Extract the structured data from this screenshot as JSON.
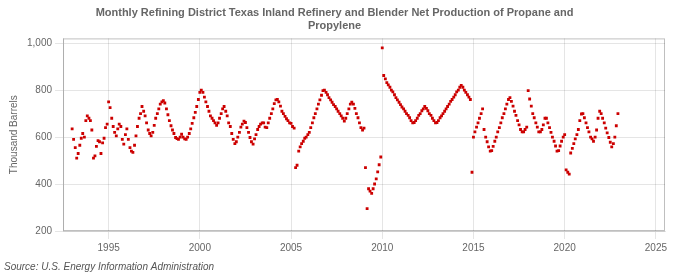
{
  "chart_data": {
    "type": "scatter",
    "title": "Monthly Refining District Texas Inland Refinery and Blender Net Production of Propane and\nPropylene",
    "ylabel": "Thousand Barrels",
    "source": "Source: U.S. Energy Information Administration",
    "color": "#cc0000",
    "marker": "square",
    "grid": true,
    "xlim": [
      1992.5,
      2025.5
    ],
    "ylim": [
      200,
      1020
    ],
    "xticks": [
      1995,
      2000,
      2005,
      2010,
      2015,
      2020,
      2025
    ],
    "yticks": [
      200,
      400,
      600,
      800,
      {
        "value": 1000,
        "label": "1,000"
      }
    ],
    "x": [
      1993.0,
      1993.08,
      1993.17,
      1993.25,
      1993.33,
      1993.42,
      1993.5,
      1993.58,
      1993.67,
      1993.75,
      1993.83,
      1993.92,
      1994.0,
      1994.08,
      1994.17,
      1994.25,
      1994.33,
      1994.42,
      1994.5,
      1994.58,
      1994.67,
      1994.75,
      1994.83,
      1994.92,
      1995.0,
      1995.08,
      1995.17,
      1995.25,
      1995.33,
      1995.42,
      1995.5,
      1995.58,
      1995.67,
      1995.75,
      1995.83,
      1995.92,
      1996.0,
      1996.08,
      1996.17,
      1996.25,
      1996.33,
      1996.42,
      1996.5,
      1996.58,
      1996.67,
      1996.75,
      1996.83,
      1996.92,
      1997.0,
      1997.08,
      1997.17,
      1997.25,
      1997.33,
      1997.42,
      1997.5,
      1997.58,
      1997.67,
      1997.75,
      1997.83,
      1997.92,
      1998.0,
      1998.08,
      1998.17,
      1998.25,
      1998.33,
      1998.42,
      1998.5,
      1998.58,
      1998.67,
      1998.75,
      1998.83,
      1998.92,
      1999.0,
      1999.08,
      1999.17,
      1999.25,
      1999.33,
      1999.42,
      1999.5,
      1999.58,
      1999.67,
      1999.75,
      1999.83,
      1999.92,
      2000.0,
      2000.08,
      2000.17,
      2000.25,
      2000.33,
      2000.42,
      2000.5,
      2000.58,
      2000.67,
      2000.75,
      2000.83,
      2000.92,
      2001.0,
      2001.08,
      2001.17,
      2001.25,
      2001.33,
      2001.42,
      2001.5,
      2001.58,
      2001.67,
      2001.75,
      2001.83,
      2001.92,
      2002.0,
      2002.08,
      2002.17,
      2002.25,
      2002.33,
      2002.42,
      2002.5,
      2002.58,
      2002.67,
      2002.75,
      2002.83,
      2002.92,
      2003.0,
      2003.08,
      2003.17,
      2003.25,
      2003.33,
      2003.42,
      2003.5,
      2003.58,
      2003.67,
      2003.75,
      2003.83,
      2003.92,
      2004.0,
      2004.08,
      2004.17,
      2004.25,
      2004.33,
      2004.42,
      2004.5,
      2004.58,
      2004.67,
      2004.75,
      2004.83,
      2004.92,
      2005.0,
      2005.08,
      2005.17,
      2005.25,
      2005.33,
      2005.42,
      2005.5,
      2005.58,
      2005.67,
      2005.75,
      2005.83,
      2005.92,
      2006.0,
      2006.08,
      2006.17,
      2006.25,
      2006.33,
      2006.42,
      2006.5,
      2006.58,
      2006.67,
      2006.75,
      2006.83,
      2006.92,
      2007.0,
      2007.08,
      2007.17,
      2007.25,
      2007.33,
      2007.42,
      2007.5,
      2007.58,
      2007.67,
      2007.75,
      2007.83,
      2007.92,
      2008.0,
      2008.08,
      2008.17,
      2008.25,
      2008.33,
      2008.42,
      2008.5,
      2008.58,
      2008.67,
      2008.75,
      2008.83,
      2008.92,
      2009.0,
      2009.08,
      2009.17,
      2009.25,
      2009.33,
      2009.42,
      2009.5,
      2009.58,
      2009.67,
      2009.75,
      2009.83,
      2009.92,
      2010.0,
      2010.08,
      2010.17,
      2010.25,
      2010.33,
      2010.42,
      2010.5,
      2010.58,
      2010.67,
      2010.75,
      2010.83,
      2010.92,
      2011.0,
      2011.08,
      2011.17,
      2011.25,
      2011.33,
      2011.42,
      2011.5,
      2011.58,
      2011.67,
      2011.75,
      2011.83,
      2011.92,
      2012.0,
      2012.08,
      2012.17,
      2012.25,
      2012.33,
      2012.42,
      2012.5,
      2012.58,
      2012.67,
      2012.75,
      2012.83,
      2012.92,
      2013.0,
      2013.08,
      2013.17,
      2013.25,
      2013.33,
      2013.42,
      2013.5,
      2013.58,
      2013.67,
      2013.75,
      2013.83,
      2013.92,
      2014.0,
      2014.08,
      2014.17,
      2014.25,
      2014.33,
      2014.42,
      2014.5,
      2014.58,
      2014.67,
      2014.75,
      2014.83,
      2014.92,
      2015.0,
      2015.08,
      2015.17,
      2015.25,
      2015.33,
      2015.42,
      2015.5,
      2015.58,
      2015.67,
      2015.75,
      2015.83,
      2015.92,
      2016.0,
      2016.08,
      2016.17,
      2016.25,
      2016.33,
      2016.42,
      2016.5,
      2016.58,
      2016.67,
      2016.75,
      2016.83,
      2016.92,
      2017.0,
      2017.08,
      2017.17,
      2017.25,
      2017.33,
      2017.42,
      2017.5,
      2017.58,
      2017.67,
      2017.75,
      2017.83,
      2017.92,
      2018.0,
      2018.08,
      2018.17,
      2018.25,
      2018.33,
      2018.42,
      2018.5,
      2018.58,
      2018.67,
      2018.75,
      2018.83,
      2018.92,
      2019.0,
      2019.08,
      2019.17,
      2019.25,
      2019.33,
      2019.42,
      2019.5,
      2019.58,
      2019.67,
      2019.75,
      2019.83,
      2019.92,
      2020.0,
      2020.08,
      2020.17,
      2020.25,
      2020.33,
      2020.42,
      2020.5,
      2020.58,
      2020.67,
      2020.75,
      2020.83,
      2020.92,
      2021.0,
      2021.08,
      2021.17,
      2021.25,
      2021.33,
      2021.42,
      2021.5,
      2021.58,
      2021.67,
      2021.75,
      2021.83,
      2021.92,
      2022.0,
      2022.08,
      2022.17,
      2022.25,
      2022.33,
      2022.42,
      2022.5,
      2022.58,
      2022.67,
      2022.75,
      2022.83,
      2022.92
    ],
    "values": [
      635,
      590,
      555,
      510,
      530,
      565,
      595,
      615,
      600,
      670,
      690,
      680,
      670,
      630,
      510,
      520,
      560,
      585,
      580,
      530,
      575,
      595,
      640,
      655,
      750,
      725,
      680,
      645,
      620,
      605,
      635,
      655,
      645,
      590,
      570,
      610,
      635,
      590,
      555,
      540,
      535,
      565,
      605,
      645,
      680,
      700,
      730,
      710,
      690,
      660,
      630,
      615,
      605,
      620,
      650,
      680,
      700,
      720,
      740,
      750,
      755,
      745,
      720,
      695,
      670,
      648,
      630,
      615,
      598,
      593,
      590,
      600,
      612,
      600,
      592,
      590,
      600,
      615,
      635,
      658,
      682,
      705,
      730,
      760,
      790,
      800,
      790,
      770,
      750,
      730,
      710,
      690,
      680,
      670,
      660,
      650,
      660,
      680,
      700,
      720,
      730,
      710,
      690,
      660,
      645,
      615,
      590,
      572,
      580,
      600,
      620,
      642,
      655,
      668,
      662,
      640,
      620,
      598,
      580,
      570,
      592,
      610,
      632,
      645,
      655,
      660,
      660,
      642,
      640,
      660,
      680,
      700,
      720,
      742,
      758,
      760,
      750,
      732,
      710,
      700,
      688,
      678,
      670,
      660,
      658,
      645,
      638,
      470,
      480,
      540,
      558,
      572,
      582,
      595,
      600,
      610,
      620,
      640,
      660,
      682,
      700,
      720,
      740,
      758,
      778,
      798,
      800,
      790,
      780,
      768,
      758,
      748,
      738,
      730,
      720,
      710,
      700,
      690,
      680,
      668,
      680,
      700,
      720,
      740,
      748,
      740,
      722,
      700,
      682,
      660,
      640,
      630,
      638,
      470,
      295,
      380,
      370,
      360,
      380,
      400,
      422,
      452,
      482,
      515,
      980,
      862,
      848,
      832,
      822,
      812,
      800,
      792,
      780,
      768,
      758,
      748,
      738,
      728,
      720,
      710,
      700,
      692,
      682,
      670,
      660,
      662,
      670,
      680,
      692,
      700,
      712,
      720,
      730,
      722,
      712,
      700,
      692,
      680,
      670,
      660,
      662,
      670,
      682,
      690,
      700,
      710,
      720,
      730,
      740,
      752,
      760,
      770,
      780,
      792,
      800,
      812,
      820,
      812,
      800,
      790,
      780,
      770,
      760,
      450,
      600,
      622,
      642,
      660,
      680,
      700,
      720,
      632,
      600,
      580,
      558,
      540,
      542,
      560,
      582,
      600,
      622,
      640,
      660,
      682,
      700,
      720,
      740,
      760,
      768,
      752,
      732,
      710,
      692,
      670,
      652,
      632,
      622,
      622,
      632,
      642,
      798,
      762,
      732,
      700,
      682,
      660,
      642,
      622,
      622,
      632,
      652,
      680,
      680,
      660,
      640,
      620,
      600,
      582,
      562,
      540,
      542,
      562,
      582,
      600,
      610,
      460,
      450,
      442,
      532,
      552,
      572,
      592,
      610,
      632,
      670,
      698,
      700,
      682,
      660,
      640,
      622,
      600,
      592,
      582,
      600,
      630,
      680,
      710,
      700,
      680,
      660,
      638,
      618,
      598,
      578,
      558,
      572,
      600,
      648,
      700
    ]
  }
}
